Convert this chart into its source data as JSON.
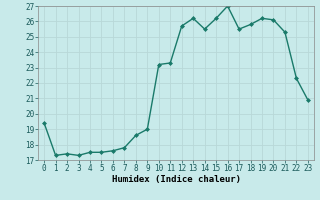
{
  "x": [
    0,
    1,
    2,
    3,
    4,
    5,
    6,
    7,
    8,
    9,
    10,
    11,
    12,
    13,
    14,
    15,
    16,
    17,
    18,
    19,
    20,
    21,
    22,
    23
  ],
  "y": [
    19.4,
    17.3,
    17.4,
    17.3,
    17.5,
    17.5,
    17.6,
    17.8,
    18.6,
    19.0,
    23.2,
    23.3,
    25.7,
    26.2,
    25.5,
    26.2,
    27.0,
    25.5,
    25.8,
    26.2,
    26.1,
    25.3,
    22.3,
    20.9
  ],
  "xlabel": "Humidex (Indice chaleur)",
  "ylim": [
    17,
    27
  ],
  "xlim": [
    -0.5,
    23.5
  ],
  "yticks": [
    17,
    18,
    19,
    20,
    21,
    22,
    23,
    24,
    25,
    26,
    27
  ],
  "xticks": [
    0,
    1,
    2,
    3,
    4,
    5,
    6,
    7,
    8,
    9,
    10,
    11,
    12,
    13,
    14,
    15,
    16,
    17,
    18,
    19,
    20,
    21,
    22,
    23
  ],
  "line_color": "#1a7a6a",
  "marker": "D",
  "markersize": 2.0,
  "bg_color": "#c8eaea",
  "grid_color": "#b8d8d8",
  "linewidth": 1.0,
  "tick_fontsize": 5.5,
  "xlabel_fontsize": 6.5
}
